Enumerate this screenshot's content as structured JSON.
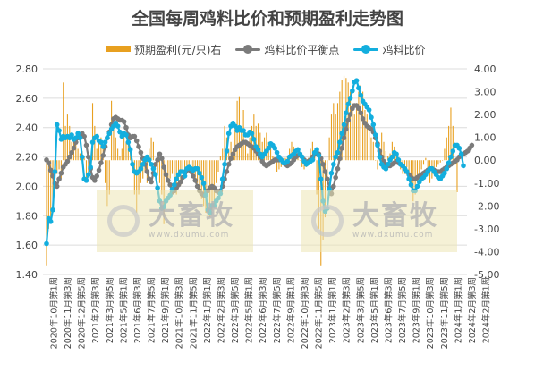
{
  "watermark": {
    "name": "大畜牧",
    "url": "www.dxumu.com"
  },
  "colors": {
    "profit": "#E8A020",
    "breakeven": "#7B7B7B",
    "ratio": "#13AEDE",
    "grid": "#DCDCDC",
    "text": "#444444"
  },
  "chart_data": {
    "type": "bar+line",
    "title": "全国每周鸡料比价和预期盈利走势图",
    "legend_position": "top",
    "grid": true,
    "y_left": {
      "ticks": [
        "1.40",
        "1.60",
        "1.80",
        "2.00",
        "2.20",
        "2.40",
        "2.60",
        "2.80"
      ],
      "range": [
        1.4,
        2.8
      ]
    },
    "y_right": {
      "ticks": [
        "-5.00",
        "-4.00",
        "-3.00",
        "-2.00",
        "-1.00",
        "0.00",
        "1.00",
        "2.00",
        "3.00",
        "4.00"
      ],
      "range": [
        -5,
        4
      ]
    },
    "x_labels": [
      "2020年10月第1周",
      "2020年11月第3周",
      "2020年12月第5周",
      "2021年2月第3周",
      "2021年3月第5周",
      "2021年5月第1周",
      "2021年6月第3周",
      "2021年7月第5周",
      "2021年9月第1周",
      "2021年10月第3周",
      "2021年11月第5周",
      "2022年1月第1周",
      "2022年2月第3周",
      "2022年3月第5周",
      "2022年5月第1周",
      "2022年6月第3周",
      "2022年7月第5周",
      "2022年9月第1周",
      "2022年10月第3周",
      "2022年11月第5周",
      "2023年1月第1周",
      "2023年2月第3周",
      "2023年3月第5周",
      "2023年5月第1周",
      "2023年6月第3周",
      "2023年7月第5周",
      "2023年9月第1周",
      "2023年10月第3周",
      "2023年11月第5周",
      "2024年1月第1周",
      "2024年2月第3周",
      "2024年2月第1周"
    ],
    "series": [
      {
        "name": "预期盈利(元/只)右",
        "type": "bar",
        "axis": "right",
        "values": [
          -4.6,
          -3.0,
          -2.5,
          -2.0,
          -1.3,
          -0.6,
          -0.4,
          -0.8,
          3.4,
          1.5,
          2.0,
          1.5,
          0.8,
          1.0,
          0.8,
          0.5,
          0.3,
          0.4,
          0.2,
          -0.8,
          -0.6,
          0.2,
          2.5,
          1.5,
          0.5,
          0.8,
          1.0,
          0.5,
          -1.0,
          -2.0,
          -1.5,
          2.6,
          1.5,
          1.0,
          0.5,
          0.2,
          0.5,
          1.0,
          0.8,
          1.2,
          0.5,
          -0.5,
          -1.5,
          -2.3,
          -1.5,
          -1.0,
          -0.8,
          -0.5,
          -1.0,
          0.5,
          1.0,
          0.8,
          0.0,
          -0.6,
          -1.0,
          -1.5,
          -2.8,
          -2.5,
          -1.0,
          -0.8,
          -0.6,
          -1.2,
          -1.5,
          -1.0,
          -1.1,
          -0.5,
          -0.5,
          -0.5,
          -0.4,
          -0.5,
          -0.6,
          -0.8,
          -1.0,
          -1.4,
          -1.7,
          -2.0,
          -2.3,
          -2.5,
          -2.5,
          -2.2,
          -2.0,
          -1.0,
          -0.5,
          0.2,
          0.5,
          1.5,
          1.0,
          0.5,
          0.8,
          0.5,
          1.5,
          2.6,
          2.8,
          1.5,
          2.2,
          0.8,
          0.3,
          1.0,
          1.5,
          2.0,
          1.5,
          1.6,
          1.2,
          0.8,
          1.0,
          1.2,
          0.8,
          0.6,
          0.2,
          0.0,
          -0.5,
          -0.4,
          -0.3,
          -0.2,
          0.1,
          0.2,
          0.5,
          0.8,
          0.6,
          0.3,
          0.2,
          0.0,
          -0.3,
          -0.4,
          -0.3,
          0.1,
          0.5,
          0.8,
          0.2,
          -1.5,
          -3.0,
          -4.6,
          -3.5,
          -2.5,
          -1.0,
          1.0,
          2.0,
          2.5,
          2.0,
          2.5,
          3.0,
          3.5,
          3.7,
          3.6,
          3.4,
          3.0,
          2.5,
          2.0,
          2.5,
          3.0,
          3.3,
          3.0,
          2.2,
          2.0,
          1.5,
          1.0,
          0.8,
          0.0,
          -0.4,
          0.5,
          1.2,
          0.8,
          0.4,
          0.2,
          0.3,
          0.8,
          0.6,
          0.3,
          0.0,
          -0.4,
          -0.6,
          -0.6,
          -0.3,
          -0.6,
          -1.2,
          -1.8,
          -1.5,
          -1.0,
          -0.6,
          -0.4,
          -0.2,
          0.1,
          -0.6,
          -1.0,
          -0.8,
          -0.6,
          -0.3,
          -0.2,
          -0.1,
          0.0,
          0.5,
          1.0,
          1.5,
          2.3,
          1.5,
          -0.2,
          -1.4
        ]
      },
      {
        "name": "鸡料比价平衡点",
        "type": "line",
        "axis": "left",
        "values": [
          2.18,
          2.16,
          2.11,
          2.07,
          2.02,
          2.0,
          2.05,
          2.09,
          2.13,
          2.15,
          2.17,
          2.2,
          2.23,
          2.26,
          2.3,
          2.33,
          2.35,
          2.36,
          2.34,
          2.28,
          2.2,
          2.12,
          2.06,
          2.04,
          2.07,
          2.11,
          2.16,
          2.21,
          2.27,
          2.33,
          2.37,
          2.42,
          2.46,
          2.47,
          2.46,
          2.45,
          2.45,
          2.44,
          2.4,
          2.35,
          2.33,
          2.34,
          2.34,
          2.31,
          2.27,
          2.23,
          2.19,
          2.15,
          2.1,
          2.05,
          2.03,
          2.09,
          2.15,
          2.18,
          2.22,
          2.19,
          2.13,
          2.08,
          2.04,
          2.01,
          1.96,
          1.97,
          1.99,
          2.01,
          2.03,
          2.06,
          2.09,
          2.11,
          2.12,
          2.1,
          2.07,
          2.04,
          2.0,
          1.97,
          1.95,
          1.94,
          1.95,
          1.97,
          1.99,
          2.0,
          1.99,
          1.97,
          1.96,
          1.97,
          2.0,
          2.05,
          2.1,
          2.15,
          2.19,
          2.22,
          2.25,
          2.27,
          2.28,
          2.29,
          2.3,
          2.3,
          2.29,
          2.28,
          2.27,
          2.26,
          2.24,
          2.22,
          2.2,
          2.17,
          2.15,
          2.14,
          2.15,
          2.16,
          2.17,
          2.18,
          2.18,
          2.18,
          2.18,
          2.16,
          2.15,
          2.14,
          2.15,
          2.16,
          2.18,
          2.2,
          2.21,
          2.22,
          2.2,
          2.18,
          2.16,
          2.17,
          2.18,
          2.2,
          2.22,
          2.23,
          2.22,
          2.19,
          2.15,
          2.1,
          2.05,
          1.99,
          1.95,
          2.0,
          2.06,
          2.12,
          2.19,
          2.26,
          2.33,
          2.39,
          2.45,
          2.49,
          2.53,
          2.55,
          2.55,
          2.53,
          2.5,
          2.46,
          2.43,
          2.41,
          2.4,
          2.39,
          2.37,
          2.33,
          2.29,
          2.24,
          2.2,
          2.17,
          2.15,
          2.14,
          2.14,
          2.15,
          2.16,
          2.17,
          2.16,
          2.15,
          2.14,
          2.12,
          2.1,
          2.08,
          2.06,
          2.05,
          2.05,
          2.06,
          2.07,
          2.08,
          2.09,
          2.1,
          2.11,
          2.12,
          2.12,
          2.11,
          2.1,
          2.1,
          2.1,
          2.11,
          2.12,
          2.13,
          2.14,
          2.15,
          2.16,
          2.17,
          2.18,
          2.2,
          2.21,
          2.22,
          2.23,
          2.24,
          2.26,
          2.28
        ]
      },
      {
        "name": "鸡料比价",
        "type": "line",
        "axis": "left",
        "values": [
          1.61,
          1.78,
          1.76,
          1.84,
          2.1,
          2.42,
          2.38,
          2.32,
          2.34,
          2.33,
          2.34,
          2.33,
          2.35,
          2.32,
          2.33,
          2.36,
          2.33,
          2.2,
          2.05,
          2.04,
          2.08,
          2.13,
          2.3,
          2.33,
          2.34,
          2.31,
          2.3,
          2.27,
          2.3,
          2.33,
          2.36,
          2.39,
          2.41,
          2.43,
          2.41,
          2.37,
          2.34,
          2.36,
          2.35,
          2.3,
          2.25,
          2.15,
          2.1,
          2.09,
          2.1,
          2.12,
          2.15,
          2.18,
          2.2,
          2.18,
          2.15,
          2.12,
          2.08,
          1.99,
          1.9,
          1.85,
          1.86,
          1.9,
          1.92,
          1.94,
          1.98,
          2.01,
          2.05,
          2.08,
          2.1,
          2.1,
          2.07,
          2.12,
          2.13,
          2.12,
          2.11,
          2.12,
          2.12,
          2.09,
          2.06,
          2.02,
          1.94,
          1.84,
          1.82,
          1.87,
          1.87,
          1.9,
          1.92,
          1.95,
          2.05,
          2.15,
          2.24,
          2.36,
          2.41,
          2.43,
          2.41,
          2.38,
          2.4,
          2.38,
          2.38,
          2.35,
          2.35,
          2.37,
          2.36,
          2.32,
          2.27,
          2.25,
          2.22,
          2.2,
          2.22,
          2.24,
          2.26,
          2.29,
          2.28,
          2.26,
          2.23,
          2.2,
          2.18,
          2.16,
          2.16,
          2.17,
          2.2,
          2.21,
          2.22,
          2.24,
          2.25,
          2.22,
          2.2,
          2.17,
          2.15,
          2.16,
          2.17,
          2.18,
          2.23,
          2.25,
          2.21,
          2.05,
          1.9,
          1.83,
          1.85,
          1.98,
          2.09,
          2.15,
          2.2,
          2.23,
          2.3,
          2.36,
          2.42,
          2.5,
          2.56,
          2.6,
          2.65,
          2.71,
          2.72,
          2.67,
          2.62,
          2.58,
          2.56,
          2.54,
          2.52,
          2.47,
          2.42,
          2.35,
          2.28,
          2.2,
          2.15,
          2.13,
          2.12,
          2.15,
          2.18,
          2.2,
          2.23,
          2.22,
          2.18,
          2.15,
          2.14,
          2.12,
          2.1,
          2.05,
          2.01,
          1.97,
          1.97,
          2.0,
          2.03,
          2.05,
          2.06,
          2.08,
          2.1,
          2.12,
          2.12,
          2.1,
          2.08,
          2.06,
          2.05,
          2.07,
          2.09,
          2.12,
          2.16,
          2.2,
          2.24,
          2.28,
          2.28,
          2.26,
          2.22,
          2.14
        ]
      }
    ]
  }
}
